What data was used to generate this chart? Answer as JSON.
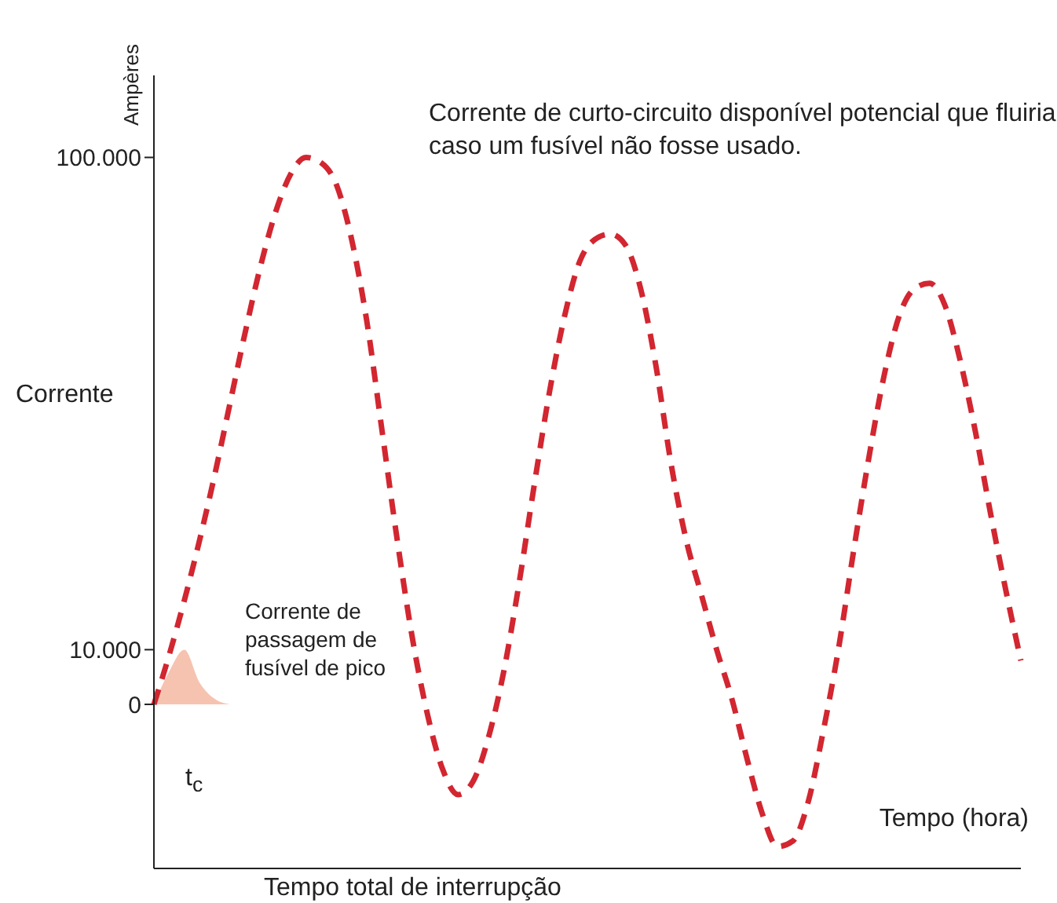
{
  "chart_data": {
    "type": "line",
    "ylabel": "Corrente",
    "xlabel": "Tempo (hora)",
    "categories": [
      null,
      null,
      null,
      null,
      null,
      null,
      null,
      null,
      null,
      null,
      null,
      null,
      null,
      null,
      null,
      null,
      null,
      null,
      null,
      null,
      null,
      null,
      null,
      null,
      null,
      null,
      null,
      null,
      null,
      null,
      null,
      null,
      null,
      null,
      null,
      null,
      null,
      null,
      null,
      null,
      null,
      null,
      null,
      null,
      null,
      null,
      null,
      null,
      null,
      null,
      null,
      null,
      null,
      null,
      null,
      null,
      null,
      null
    ],
    "series": [
      {
        "color": "#d22630",
        "values": [
          0,
          9000,
          19000,
          30000,
          42000,
          55000,
          68000,
          80000,
          90000,
          97000,
          100000,
          99000,
          95000,
          85000,
          70000,
          50000,
          30000,
          12000,
          -2000,
          -12000,
          -16500,
          -14000,
          -6000,
          6000,
          22000,
          40000,
          57000,
          71000,
          81000,
          85000,
          86000,
          84000,
          76000,
          62000,
          44000,
          30000,
          20000,
          10000,
          1000,
          -10000,
          -20000,
          -26000,
          -25000,
          -18000,
          -5000,
          10000,
          28000,
          45000,
          60000,
          71000,
          76000,
          77000,
          73000,
          63000,
          50000,
          35000,
          21000,
          8000
        ]
      },
      {
        "type": "area",
        "color": "#f6c3b0",
        "values": [
          0,
          6000,
          10000,
          4000,
          1000,
          0,
          null,
          null,
          null,
          null,
          null,
          null,
          null,
          null,
          null,
          null,
          null,
          null,
          null,
          null,
          null,
          null,
          null,
          null,
          null,
          null,
          null,
          null,
          null,
          null,
          null,
          null,
          null,
          null,
          null,
          null,
          null,
          null,
          null,
          null,
          null,
          null,
          null,
          null,
          null,
          null,
          null,
          null,
          null,
          null,
          null,
          null,
          null,
          null,
          null,
          null,
          null,
          null
        ]
      }
    ],
    "ylim": [
      -30000,
      115000
    ],
    "yticks": [
      0,
      {
        "value": 10000,
        "label": "10.000"
      },
      {
        "value": 100000,
        "label": "100.000"
      }
    ],
    "line_style": "dashed",
    "marker": "none",
    "grid": false,
    "legend": false,
    "tick_labels": "y",
    "annotations": [
      "Ampères",
      "Corrente de curto-circuito disponível potencial que fluiria caso um fusível não fosse usado.",
      "Corrente de passagem de fusível de pico",
      "t$_{c}$",
      "Tempo total de interrupção"
    ]
  }
}
